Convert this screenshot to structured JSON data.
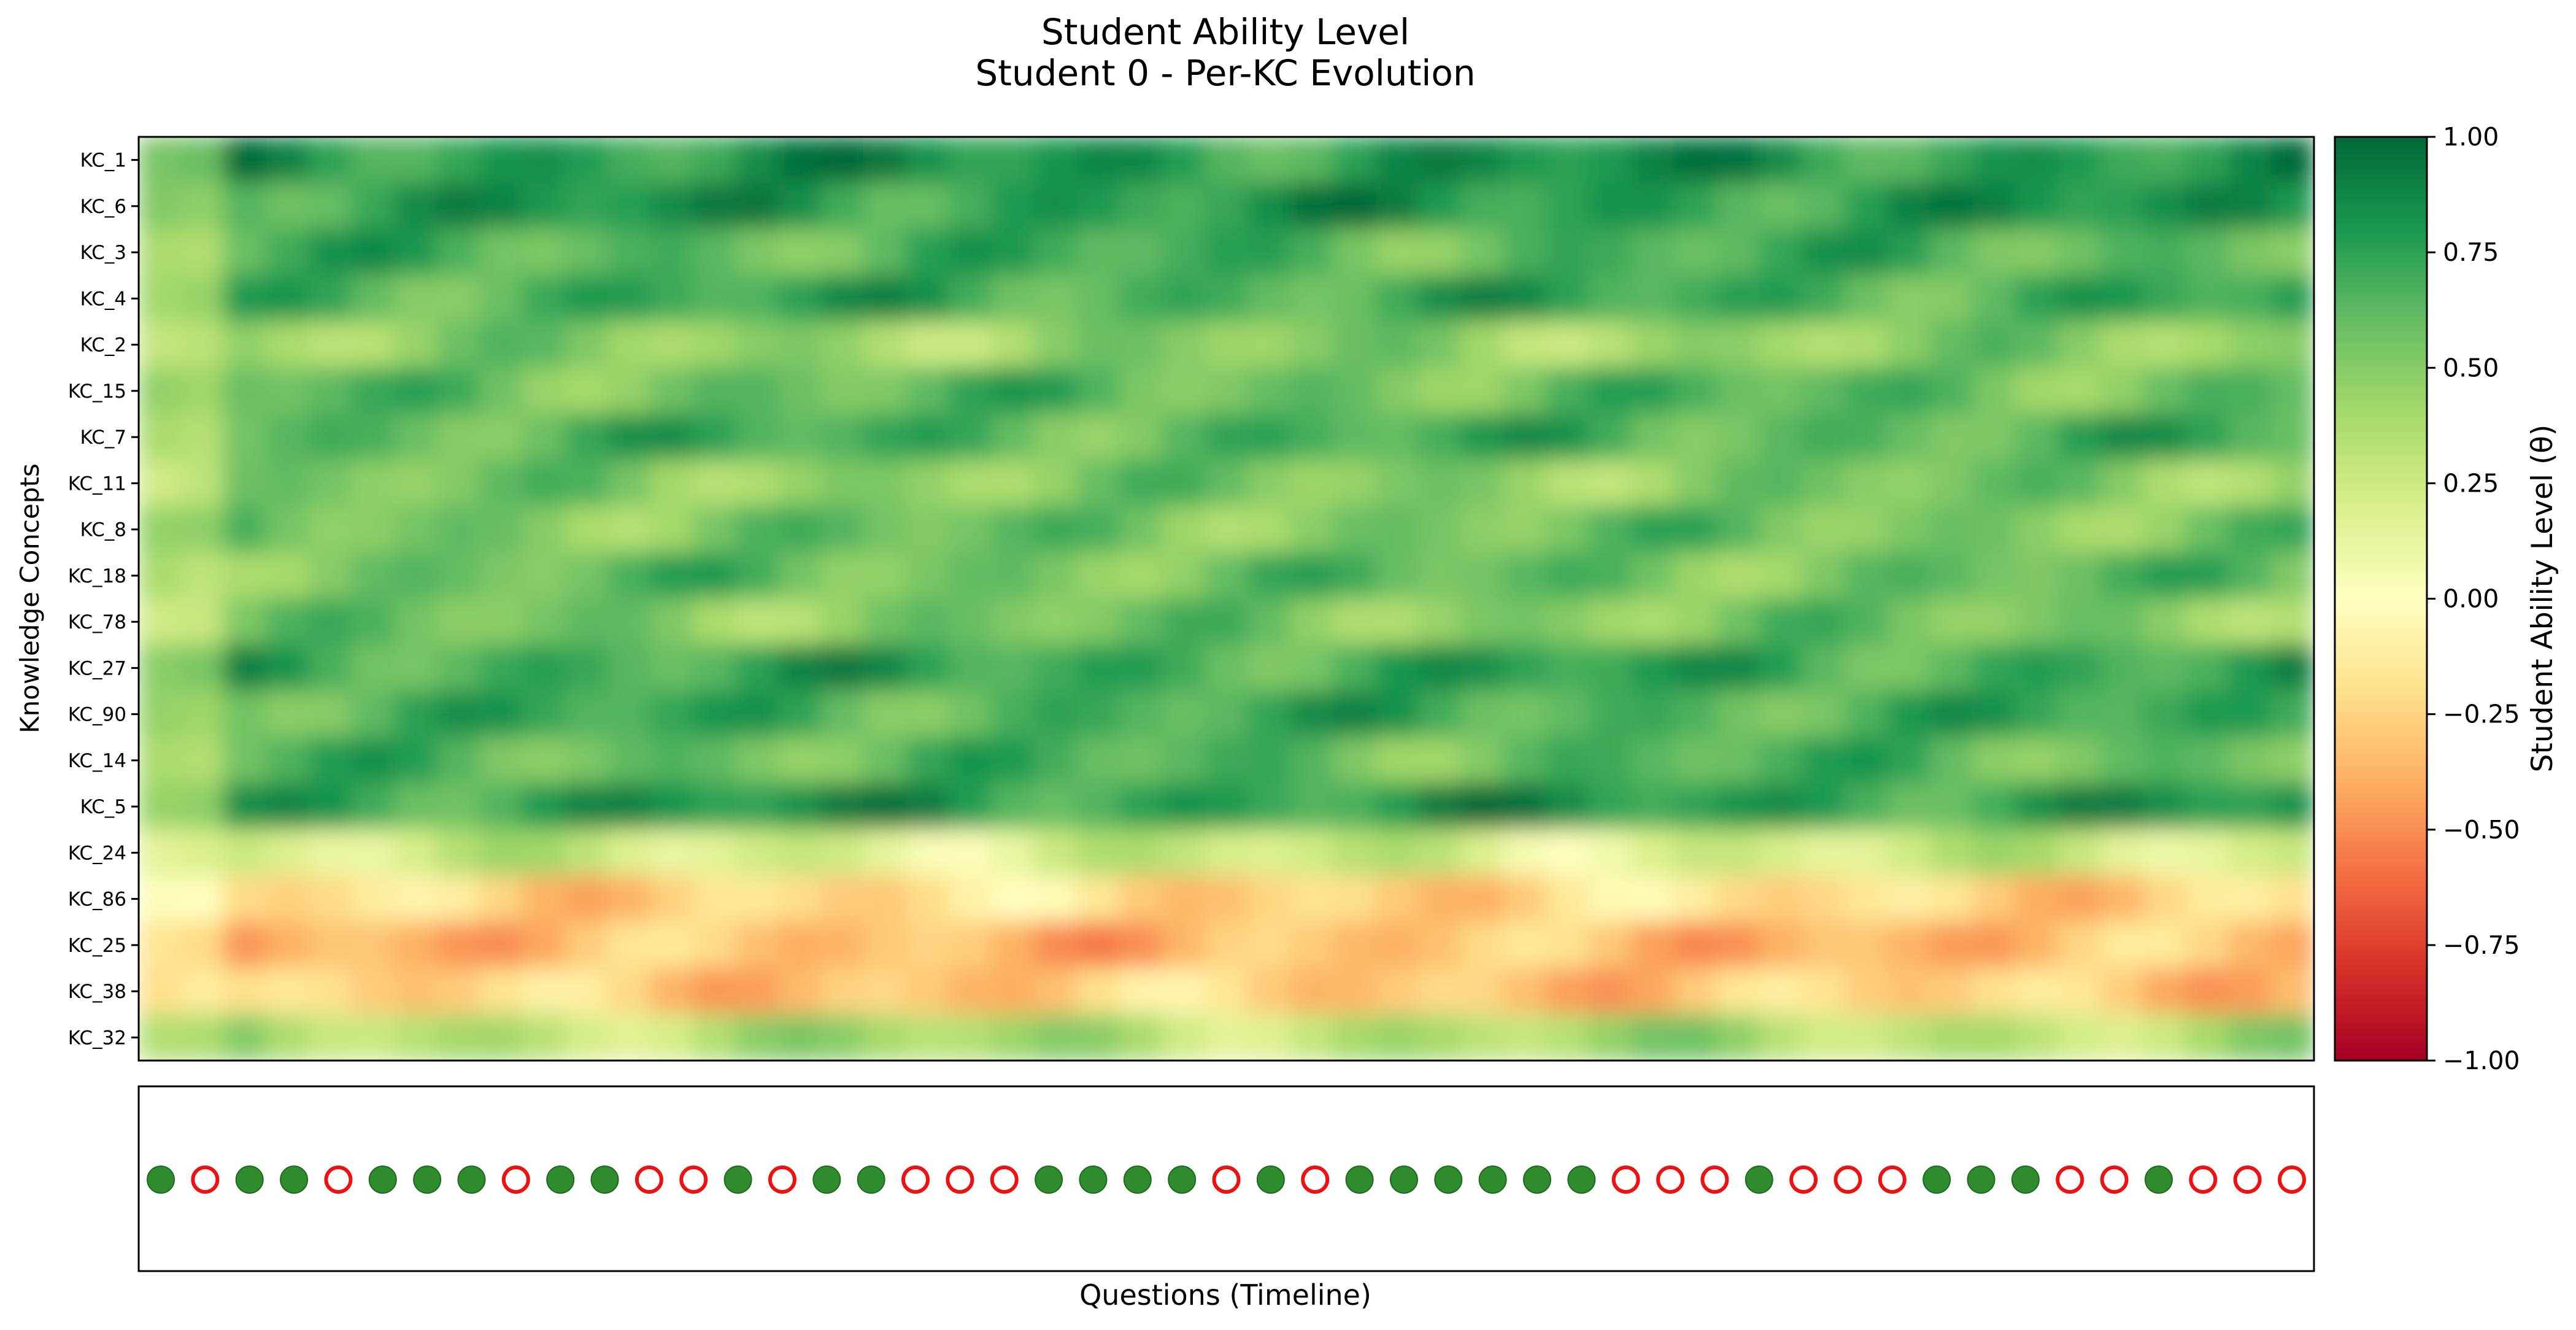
{
  "chart_data": [
    {
      "type": "heatmap",
      "title": "Student Ability Level",
      "subtitle": "Student 0 - Per-KC Evolution",
      "xlabel": "",
      "ylabel": "Knowledge Concepts",
      "y_categories": [
        "KC_1",
        "KC_6",
        "KC_3",
        "KC_4",
        "KC_2",
        "KC_15",
        "KC_7",
        "KC_11",
        "KC_8",
        "KC_18",
        "KC_78",
        "KC_27",
        "KC_90",
        "KC_14",
        "KC_5",
        "KC_24",
        "KC_86",
        "KC_25",
        "KC_38",
        "KC_32"
      ],
      "x_count": 51,
      "row_mean_values": [
        0.8,
        0.78,
        0.65,
        0.7,
        0.45,
        0.6,
        0.66,
        0.5,
        0.55,
        0.58,
        0.52,
        0.72,
        0.68,
        0.62,
        0.78,
        0.22,
        -0.22,
        -0.34,
        -0.28,
        0.36
      ],
      "colormap": "RdYlGn",
      "colorbar": {
        "label": "Student Ability Level (θ)",
        "range": [
          -1.0,
          1.0
        ],
        "ticks": [
          "1.00",
          "0.75",
          "0.50",
          "0.25",
          "0.00",
          "−0.25",
          "−0.50",
          "−0.75",
          "−1.00"
        ]
      }
    },
    {
      "type": "scatter",
      "xlabel": "Questions (Timeline)",
      "responses": [
        1,
        0,
        1,
        1,
        0,
        1,
        1,
        1,
        0,
        1,
        1,
        0,
        0,
        1,
        0,
        1,
        1,
        0,
        0,
        0,
        1,
        1,
        1,
        1,
        0,
        1,
        0,
        1,
        1,
        1,
        1,
        1,
        1,
        0,
        0,
        0,
        1,
        0,
        0,
        0,
        1,
        1,
        1,
        0,
        0,
        1,
        0,
        0,
        0
      ],
      "legend_meaning": {
        "filled": "correct",
        "hollow": "incorrect"
      }
    }
  ],
  "colors": {
    "correct_fill": "#2e8b2e",
    "incorrect_edge": "#ee1111",
    "cmap_stops": [
      "#a50026",
      "#d73027",
      "#f46d43",
      "#fdae61",
      "#fee08b",
      "#ffffbf",
      "#d9ef8b",
      "#a6d96a",
      "#66bd63",
      "#1a9850",
      "#006837"
    ]
  }
}
